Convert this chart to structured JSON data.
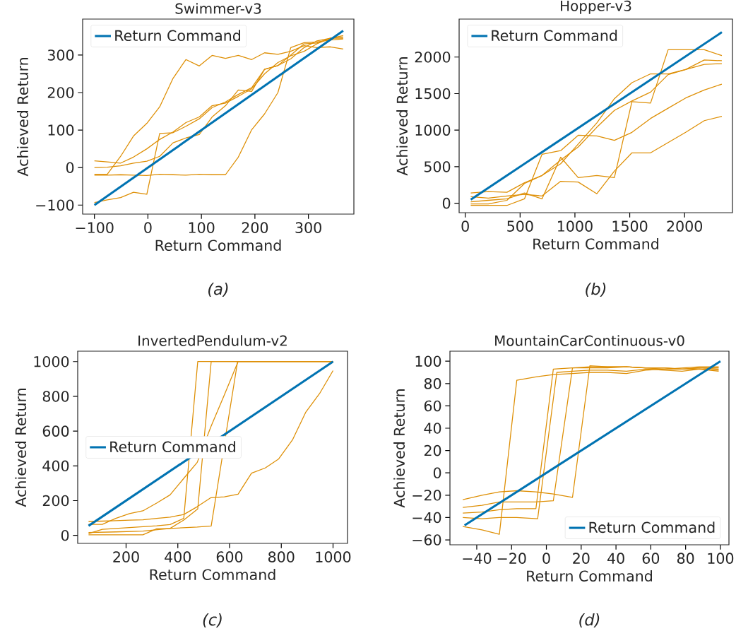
{
  "chart_data": [
    {
      "type": "line",
      "title": "Swimmer-v3",
      "xlabel": "Return Command",
      "ylabel": "Achieved Return",
      "annotations": [
        "(a)"
      ],
      "legend": "top left",
      "xlim": [
        -122,
        385
      ],
      "ylim": [
        -124,
        396
      ],
      "xticks": [
        {
          "value": -100,
          "label": "−100"
        },
        0,
        100,
        200,
        300
      ],
      "yticks": [
        {
          "value": -100,
          "label": "−100"
        },
        0,
        100,
        200,
        300
      ],
      "series": [
        {
          "name": "Return Command",
          "color": "#0173b2",
          "x": [
            -100,
            365
          ],
          "values": [
            -100,
            365
          ]
        },
        {
          "color": "#de8f05",
          "x": [
            -100,
            -76,
            -51,
            -27,
            -2,
            22,
            47,
            71,
            96,
            120,
            145,
            169,
            194,
            218,
            243,
            267,
            292,
            316,
            341,
            365
          ],
          "values": [
            -18,
            -18,
            30,
            84,
            118,
            162,
            238,
            288,
            271,
            299,
            291,
            299,
            288,
            306,
            302,
            310,
            325,
            320,
            322,
            316
          ]
        },
        {
          "color": "#de8f05",
          "x": [
            -100,
            -76,
            -51,
            -27,
            -2,
            22,
            47,
            71,
            96,
            120,
            145,
            169,
            194,
            218,
            243,
            267,
            292,
            316,
            341,
            365
          ],
          "values": [
            -20,
            -20,
            -19,
            -20,
            -21,
            -18,
            -19,
            -20,
            -18,
            -19,
            -19,
            28,
            101,
            143,
            200,
            320,
            333,
            335,
            340,
            343
          ]
        },
        {
          "color": "#de8f05",
          "x": [
            -100,
            -76,
            -51,
            -27,
            -2,
            22,
            47,
            71,
            96,
            120,
            145,
            169,
            194,
            218,
            243,
            267,
            292,
            316,
            341,
            365
          ],
          "values": [
            -93,
            -86,
            -80,
            -66,
            -71,
            91,
            93,
            110,
            130,
            160,
            175,
            195,
            213,
            262,
            272,
            300,
            330,
            332,
            345,
            348
          ]
        },
        {
          "color": "#de8f05",
          "x": [
            -100,
            -76,
            -51,
            -27,
            -2,
            22,
            47,
            71,
            96,
            120,
            145,
            169,
            194,
            218,
            243,
            267,
            292,
            316,
            341,
            365
          ],
          "values": [
            0,
            1,
            5,
            12,
            17,
            30,
            66,
            79,
            88,
            135,
            165,
            207,
            203,
            262,
            272,
            290,
            320,
            338,
            345,
            352
          ]
        },
        {
          "color": "#de8f05",
          "x": [
            -100,
            -76,
            -51,
            -27,
            -2,
            22,
            47,
            71,
            96,
            120,
            145,
            169,
            194,
            218,
            243,
            267,
            292,
            316,
            341,
            365
          ],
          "values": [
            18,
            15,
            12,
            28,
            50,
            75,
            95,
            120,
            135,
            165,
            172,
            190,
            210,
            250,
            280,
            298,
            310,
            330,
            345,
            345
          ]
        }
      ]
    },
    {
      "type": "line",
      "title": "Hopper-v3",
      "xlabel": "Return Command",
      "ylabel": "Achieved Return",
      "annotations": [
        "(b)"
      ],
      "legend": "top left",
      "xlim": [
        -56,
        2437
      ],
      "ylim": [
        -129,
        2520
      ],
      "xticks": [
        0,
        500,
        1000,
        1500,
        2000
      ],
      "yticks": [
        0,
        500,
        1000,
        1500,
        2000
      ],
      "series": [
        {
          "name": "Return Command",
          "color": "#0173b2",
          "x": [
            50,
            2340
          ],
          "values": [
            50,
            2340
          ]
        },
        {
          "color": "#de8f05",
          "x": [
            50,
            210,
            380,
            540,
            700,
            870,
            1030,
            1200,
            1360,
            1520,
            1690,
            1850,
            2010,
            2180,
            2340
          ],
          "values": [
            20,
            40,
            60,
            140,
            60,
            630,
            350,
            380,
            350,
            1390,
            1370,
            2100,
            2100,
            2100,
            2020
          ]
        },
        {
          "color": "#de8f05",
          "x": [
            50,
            210,
            380,
            540,
            700,
            870,
            1030,
            1200,
            1360,
            1520,
            1690,
            1850,
            2010,
            2180,
            2340
          ],
          "values": [
            -30,
            -30,
            -30,
            60,
            670,
            720,
            930,
            920,
            860,
            970,
            1160,
            1300,
            1440,
            1550,
            1630
          ]
        },
        {
          "color": "#de8f05",
          "x": [
            50,
            210,
            380,
            540,
            700,
            870,
            1030,
            1200,
            1360,
            1520,
            1690,
            1850,
            2010,
            2180,
            2340
          ],
          "values": [
            90,
            70,
            100,
            120,
            100,
            300,
            290,
            130,
            440,
            690,
            690,
            830,
            970,
            1130,
            1190
          ]
        },
        {
          "color": "#de8f05",
          "x": [
            50,
            210,
            380,
            540,
            700,
            870,
            1030,
            1200,
            1360,
            1520,
            1690,
            1850,
            2010,
            2180,
            2340
          ],
          "values": [
            -10,
            -10,
            40,
            270,
            380,
            540,
            810,
            1100,
            1430,
            1650,
            1770,
            1770,
            1830,
            1960,
            1950
          ]
        },
        {
          "color": "#de8f05",
          "x": [
            50,
            210,
            380,
            540,
            700,
            870,
            1030,
            1200,
            1360,
            1520,
            1690,
            1850,
            2010,
            2180,
            2340
          ],
          "values": [
            140,
            160,
            150,
            280,
            380,
            590,
            770,
            1040,
            1270,
            1400,
            1520,
            1760,
            1830,
            1900,
            1910
          ]
        }
      ]
    },
    {
      "type": "line",
      "title": "InvertedPendulum-v2",
      "xlabel": "Return Command",
      "ylabel": "Achieved Return",
      "annotations": [
        "(c)"
      ],
      "legend": "left",
      "xlim": [
        13,
        1056
      ],
      "ylim": [
        -46,
        1060
      ],
      "xticks": [
        200,
        400,
        600,
        800,
        1000
      ],
      "yticks": [
        0,
        200,
        400,
        600,
        800,
        1000
      ],
      "series": [
        {
          "name": "Return Command",
          "color": "#0173b2",
          "x": [
            55,
            1000
          ],
          "values": [
            55,
            1000
          ]
        },
        {
          "color": "#de8f05",
          "x": [
            55,
            108,
            160,
            213,
            265,
            318,
            370,
            423,
            475,
            528,
            580,
            633,
            685,
            738,
            790,
            843,
            895,
            948,
            1000
          ],
          "values": [
            63,
            63,
            98,
            125,
            141,
            186,
            233,
            328,
            420,
            626,
            809,
            1000,
            1000,
            1000,
            1000,
            1000,
            1000,
            1000,
            1000
          ]
        },
        {
          "color": "#de8f05",
          "x": [
            55,
            108,
            160,
            213,
            265,
            318,
            370,
            423,
            475,
            528,
            580,
            633,
            685,
            738,
            790,
            843,
            895,
            948,
            1000
          ],
          "values": [
            80,
            82,
            85,
            88,
            90,
            98,
            105,
            120,
            165,
            217,
            222,
            237,
            358,
            388,
            440,
            549,
            710,
            816,
            948
          ]
        },
        {
          "color": "#de8f05",
          "x": [
            55,
            108,
            213,
            318,
            370,
            423,
            477,
            1000
          ],
          "values": [
            10,
            35,
            45,
            55,
            62,
            98,
            1000,
            1000
          ]
        },
        {
          "color": "#de8f05",
          "x": [
            55,
            108,
            265,
            318,
            370,
            423,
            477,
            529,
            1000
          ],
          "values": [
            3,
            3,
            3,
            38,
            40,
            88,
            152,
            1000,
            1000
          ]
        },
        {
          "color": "#de8f05",
          "x": [
            55,
            160,
            265,
            370,
            475,
            529,
            631,
            1000
          ],
          "values": [
            16,
            20,
            25,
            40,
            48,
            54,
            1000,
            1000
          ]
        }
      ]
    },
    {
      "type": "line",
      "title": "MountainCarContinuous-v0",
      "xlabel": "Return Command",
      "ylabel": "Achieved Return",
      "annotations": [
        "(d)"
      ],
      "legend": "bottom right",
      "xlim": [
        -55.4,
        104.9
      ],
      "ylim": [
        -64.4,
        109
      ],
      "xticks": [
        {
          "value": -40,
          "label": "−40"
        },
        {
          "value": -20,
          "label": "−20"
        },
        0,
        20,
        40,
        60,
        80,
        100
      ],
      "yticks": [
        {
          "value": -60,
          "label": "−60"
        },
        {
          "value": -40,
          "label": "−40"
        },
        {
          "value": -20,
          "label": "−20"
        },
        0,
        20,
        40,
        60,
        80,
        100
      ],
      "series": [
        {
          "name": "Return Command",
          "color": "#0173b2",
          "x": [
            -47,
            100
          ],
          "values": [
            -47,
            100
          ]
        },
        {
          "color": "#de8f05",
          "x": [
            -48,
            -37,
            -27,
            -17,
            -6,
            4,
            15,
            25,
            35,
            46,
            57,
            68,
            78,
            88,
            99
          ],
          "values": [
            -48,
            -51,
            -55,
            83,
            86,
            88,
            89,
            90,
            90,
            89,
            92,
            93,
            93,
            94,
            94
          ]
        },
        {
          "color": "#de8f05",
          "x": [
            -48,
            -37,
            -27,
            -17,
            -6,
            4,
            15,
            25,
            35,
            46,
            57,
            68,
            78,
            88,
            99
          ],
          "values": [
            -24,
            -20,
            -17,
            -16,
            -17,
            -19,
            -22,
            96,
            95,
            95,
            94,
            94,
            93,
            93,
            92
          ]
        },
        {
          "color": "#de8f05",
          "x": [
            -48,
            -37,
            -27,
            -17,
            -6,
            4,
            15,
            25,
            35,
            46,
            57,
            68,
            78,
            88,
            99
          ],
          "values": [
            -31,
            -29,
            -26,
            -26,
            -26,
            -25,
            94,
            95,
            95,
            95,
            94,
            94,
            93,
            94,
            93
          ]
        },
        {
          "color": "#de8f05",
          "x": [
            -48,
            -37,
            -27,
            -17,
            -6,
            4,
            15,
            25,
            35,
            46,
            57,
            68,
            78,
            88,
            99
          ],
          "values": [
            -36,
            -35,
            -33,
            -32,
            -32,
            93,
            94,
            94,
            94,
            95,
            94,
            93,
            94,
            95,
            95
          ]
        },
        {
          "color": "#de8f05",
          "x": [
            -48,
            -37,
            -27,
            -17,
            -5,
            6,
            15,
            25,
            35,
            46,
            57,
            68,
            78,
            88,
            99
          ],
          "values": [
            -40,
            -41,
            -40,
            -40,
            -41,
            90,
            91,
            92,
            92,
            91,
            93,
            92,
            91,
            93,
            91
          ]
        }
      ]
    }
  ]
}
